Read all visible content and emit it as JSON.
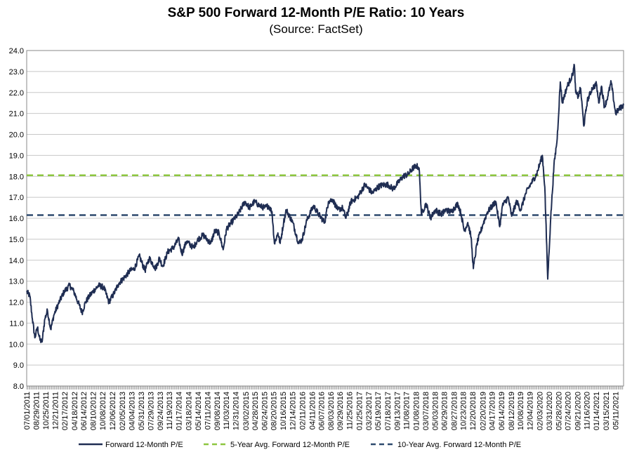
{
  "chart_data": {
    "type": "line",
    "title": "S&P 500 Forward 12-Month P/E Ratio: 10 Years",
    "subtitle": "(Source: FactSet)",
    "ylim": [
      8.0,
      24.0
    ],
    "y_ticks": [
      "8.0",
      "9.0",
      "10.0",
      "11.0",
      "12.0",
      "13.0",
      "14.0",
      "15.0",
      "16.0",
      "17.0",
      "18.0",
      "19.0",
      "20.0",
      "21.0",
      "22.0",
      "23.0",
      "24.0"
    ],
    "x_start": "07/01/2011",
    "x_end": "06/30/2021",
    "x_tick_labels": [
      "07/01/2011",
      "08/29/2011",
      "10/25/2011",
      "12/21/2011",
      "02/17/2012",
      "04/18/2012",
      "06/14/2012",
      "08/10/2012",
      "10/08/2012",
      "12/06/2012",
      "02/05/2013",
      "04/04/2013",
      "05/31/2013",
      "07/29/2013",
      "09/24/2013",
      "11/19/2013",
      "01/17/2014",
      "03/18/2014",
      "05/14/2014",
      "07/11/2014",
      "09/08/2014",
      "11/03/2014",
      "12/31/2014",
      "03/02/2015",
      "04/28/2015",
      "06/24/2015",
      "08/20/2015",
      "10/16/2015",
      "12/14/2015",
      "02/11/2016",
      "04/11/2016",
      "06/07/2016",
      "08/03/2016",
      "09/29/2016",
      "11/25/2016",
      "01/25/2017",
      "03/23/2017",
      "05/19/2017",
      "07/18/2017",
      "09/13/2017",
      "11/08/2017",
      "01/08/2018",
      "03/07/2018",
      "05/03/2018",
      "06/29/2018",
      "08/27/2018",
      "10/23/2018",
      "12/20/2018",
      "02/20/2019",
      "04/17/2019",
      "06/14/2019",
      "08/12/2019",
      "10/08/2019",
      "12/04/2019",
      "02/03/2020",
      "03/31/2020",
      "05/28/2020",
      "07/24/2020",
      "09/21/2020",
      "11/16/2020",
      "01/14/2021",
      "03/15/2021",
      "05/11/2021"
    ],
    "series": [
      {
        "name": "Forward 12-Month P/E",
        "color": "#1f2d52",
        "points": [
          [
            "2011-07-01",
            12.5
          ],
          [
            "2011-07-20",
            12.3
          ],
          [
            "2011-08-05",
            11.2
          ],
          [
            "2011-08-20",
            10.3
          ],
          [
            "2011-09-05",
            10.8
          ],
          [
            "2011-09-20",
            10.2
          ],
          [
            "2011-10-03",
            10.1
          ],
          [
            "2011-10-20",
            11.2
          ],
          [
            "2011-11-05",
            11.6
          ],
          [
            "2011-11-25",
            10.7
          ],
          [
            "2011-12-15",
            11.4
          ],
          [
            "2012-01-10",
            11.9
          ],
          [
            "2012-02-15",
            12.5
          ],
          [
            "2012-03-20",
            12.8
          ],
          [
            "2012-04-15",
            12.5
          ],
          [
            "2012-05-10",
            12.0
          ],
          [
            "2012-06-04",
            11.5
          ],
          [
            "2012-06-25",
            12.0
          ],
          [
            "2012-07-20",
            12.3
          ],
          [
            "2012-08-20",
            12.6
          ],
          [
            "2012-09-14",
            12.8
          ],
          [
            "2012-10-15",
            12.7
          ],
          [
            "2012-11-15",
            12.0
          ],
          [
            "2012-12-15",
            12.4
          ],
          [
            "2013-01-15",
            12.9
          ],
          [
            "2013-02-20",
            13.2
          ],
          [
            "2013-03-25",
            13.5
          ],
          [
            "2013-04-20",
            13.6
          ],
          [
            "2013-05-20",
            14.2
          ],
          [
            "2013-06-24",
            13.5
          ],
          [
            "2013-07-20",
            14.1
          ],
          [
            "2013-08-28",
            13.6
          ],
          [
            "2013-09-20",
            14.1
          ],
          [
            "2013-10-10",
            13.7
          ],
          [
            "2013-11-10",
            14.4
          ],
          [
            "2013-12-15",
            14.6
          ],
          [
            "2014-01-15",
            15.0
          ],
          [
            "2014-02-05",
            14.3
          ],
          [
            "2014-03-05",
            14.9
          ],
          [
            "2014-04-15",
            14.6
          ],
          [
            "2014-05-15",
            15.0
          ],
          [
            "2014-06-15",
            15.2
          ],
          [
            "2014-07-31",
            14.8
          ],
          [
            "2014-08-25",
            15.4
          ],
          [
            "2014-09-20",
            15.3
          ],
          [
            "2014-10-15",
            14.5
          ],
          [
            "2014-11-05",
            15.5
          ],
          [
            "2014-12-15",
            15.9
          ],
          [
            "2015-01-15",
            16.2
          ],
          [
            "2015-02-25",
            16.8
          ],
          [
            "2015-03-25",
            16.5
          ],
          [
            "2015-04-25",
            16.8
          ],
          [
            "2015-05-25",
            16.6
          ],
          [
            "2015-06-25",
            16.5
          ],
          [
            "2015-07-20",
            16.6
          ],
          [
            "2015-08-10",
            16.3
          ],
          [
            "2015-08-25",
            14.8
          ],
          [
            "2015-09-15",
            15.3
          ],
          [
            "2015-09-29",
            14.8
          ],
          [
            "2015-10-20",
            15.8
          ],
          [
            "2015-11-05",
            16.4
          ],
          [
            "2015-12-15",
            15.8
          ],
          [
            "2016-01-20",
            14.8
          ],
          [
            "2016-02-11",
            15.0
          ],
          [
            "2016-03-10",
            15.9
          ],
          [
            "2016-04-20",
            16.6
          ],
          [
            "2016-05-20",
            16.2
          ],
          [
            "2016-06-27",
            15.8
          ],
          [
            "2016-07-20",
            16.8
          ],
          [
            "2016-08-15",
            16.9
          ],
          [
            "2016-09-15",
            16.4
          ],
          [
            "2016-10-15",
            16.5
          ],
          [
            "2016-11-04",
            16.0
          ],
          [
            "2016-12-05",
            16.8
          ],
          [
            "2017-01-15",
            17.0
          ],
          [
            "2017-02-28",
            17.6
          ],
          [
            "2017-04-15",
            17.2
          ],
          [
            "2017-05-20",
            17.5
          ],
          [
            "2017-06-20",
            17.6
          ],
          [
            "2017-07-20",
            17.6
          ],
          [
            "2017-08-20",
            17.4
          ],
          [
            "2017-09-20",
            17.7
          ],
          [
            "2017-10-20",
            18.0
          ],
          [
            "2017-11-20",
            18.1
          ],
          [
            "2017-12-20",
            18.4
          ],
          [
            "2018-01-10",
            18.5
          ],
          [
            "2018-01-26",
            18.4
          ],
          [
            "2018-02-09",
            16.2
          ],
          [
            "2018-03-10",
            16.7
          ],
          [
            "2018-04-05",
            16.0
          ],
          [
            "2018-05-05",
            16.4
          ],
          [
            "2018-06-10",
            16.2
          ],
          [
            "2018-07-10",
            16.4
          ],
          [
            "2018-08-10",
            16.3
          ],
          [
            "2018-09-20",
            16.7
          ],
          [
            "2018-10-10",
            16.2
          ],
          [
            "2018-10-29",
            15.4
          ],
          [
            "2018-11-20",
            15.8
          ],
          [
            "2018-12-10",
            15.1
          ],
          [
            "2018-12-24",
            13.6
          ],
          [
            "2019-01-15",
            14.8
          ],
          [
            "2019-02-20",
            15.7
          ],
          [
            "2019-03-20",
            16.3
          ],
          [
            "2019-04-20",
            16.6
          ],
          [
            "2019-05-10",
            16.8
          ],
          [
            "2019-06-03",
            15.6
          ],
          [
            "2019-06-20",
            16.6
          ],
          [
            "2019-07-25",
            17.0
          ],
          [
            "2019-08-15",
            16.1
          ],
          [
            "2019-09-15",
            16.8
          ],
          [
            "2019-10-10",
            16.4
          ],
          [
            "2019-11-10",
            17.2
          ],
          [
            "2019-12-15",
            17.7
          ],
          [
            "2020-01-15",
            18.1
          ],
          [
            "2020-02-19",
            19.0
          ],
          [
            "2020-03-05",
            17.5
          ],
          [
            "2020-03-23",
            13.1
          ],
          [
            "2020-04-10",
            16.0
          ],
          [
            "2020-04-30",
            18.5
          ],
          [
            "2020-05-20",
            19.8
          ],
          [
            "2020-06-08",
            22.5
          ],
          [
            "2020-06-20",
            21.5
          ],
          [
            "2020-07-20",
            22.3
          ],
          [
            "2020-08-20",
            22.8
          ],
          [
            "2020-09-02",
            23.3
          ],
          [
            "2020-09-10",
            22.0
          ],
          [
            "2020-09-25",
            21.8
          ],
          [
            "2020-10-10",
            22.2
          ],
          [
            "2020-10-30",
            20.4
          ],
          [
            "2020-11-20",
            21.6
          ],
          [
            "2020-12-20",
            22.2
          ],
          [
            "2021-01-15",
            22.4
          ],
          [
            "2021-01-29",
            21.5
          ],
          [
            "2021-02-15",
            22.3
          ],
          [
            "2021-03-05",
            21.3
          ],
          [
            "2021-03-25",
            21.8
          ],
          [
            "2021-04-15",
            22.5
          ],
          [
            "2021-05-12",
            21.0
          ],
          [
            "2021-06-01",
            21.2
          ],
          [
            "2021-06-30",
            21.4
          ]
        ]
      },
      {
        "name": "5-Year Avg. Forward 12-Month P/E",
        "color": "#8dc63f",
        "value": 18.05,
        "style": "dashed"
      },
      {
        "name": "10-Year Avg. Forward 12-Month P/E",
        "color": "#2e4a6e",
        "value": 16.15,
        "style": "dashed"
      }
    ],
    "legend_position": "bottom"
  }
}
